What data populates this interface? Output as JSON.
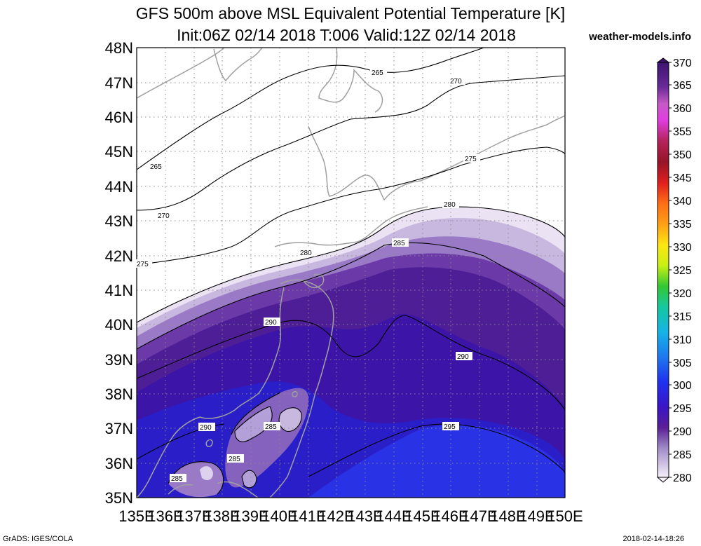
{
  "header": {
    "title_line1": "GFS 500m above MSL Equivalent Potential Temperature [K]",
    "title_line2": "Init:06Z 02/14 2018 T:006 Valid:12Z 02/14 2018",
    "site": "weather-models.info"
  },
  "footer": {
    "credit": "GrADS: IGES/COLA",
    "timestamp": "2018-02-14-18:26"
  },
  "map": {
    "lat_labels": [
      "48N",
      "47N",
      "46N",
      "45N",
      "44N",
      "43N",
      "42N",
      "41N",
      "40N",
      "39N",
      "38N",
      "37N",
      "36N",
      "35N"
    ],
    "lon_labels": [
      "135E",
      "136E",
      "137E",
      "138E",
      "139E",
      "140E",
      "141E",
      "142E",
      "143E",
      "144E",
      "145E",
      "146E",
      "147E",
      "148E",
      "149E",
      "150E"
    ],
    "contour_labels": [
      "265",
      "265",
      "270",
      "270",
      "275",
      "275",
      "280",
      "280",
      "285",
      "285",
      "285",
      "285",
      "290",
      "290",
      "290",
      "295"
    ]
  },
  "colorbar": {
    "labels": [
      "370",
      "365",
      "360",
      "355",
      "350",
      "345",
      "340",
      "335",
      "330",
      "325",
      "320",
      "315",
      "310",
      "305",
      "300",
      "295",
      "290",
      "285",
      "280"
    ],
    "colors": [
      "#3c1470",
      "#8a2fa8",
      "#e03ce0",
      "#b4235a",
      "#961428",
      "#c81e1e",
      "#ff3214",
      "#ff6e14",
      "#ffa014",
      "#ffd214",
      "#dcf014",
      "#96dc14",
      "#32c832",
      "#14c8a0",
      "#14b4dc",
      "#1e78f0",
      "#1e3cf0",
      "#5a1eb4",
      "#a08cc8",
      "#f0ebf5"
    ]
  }
}
